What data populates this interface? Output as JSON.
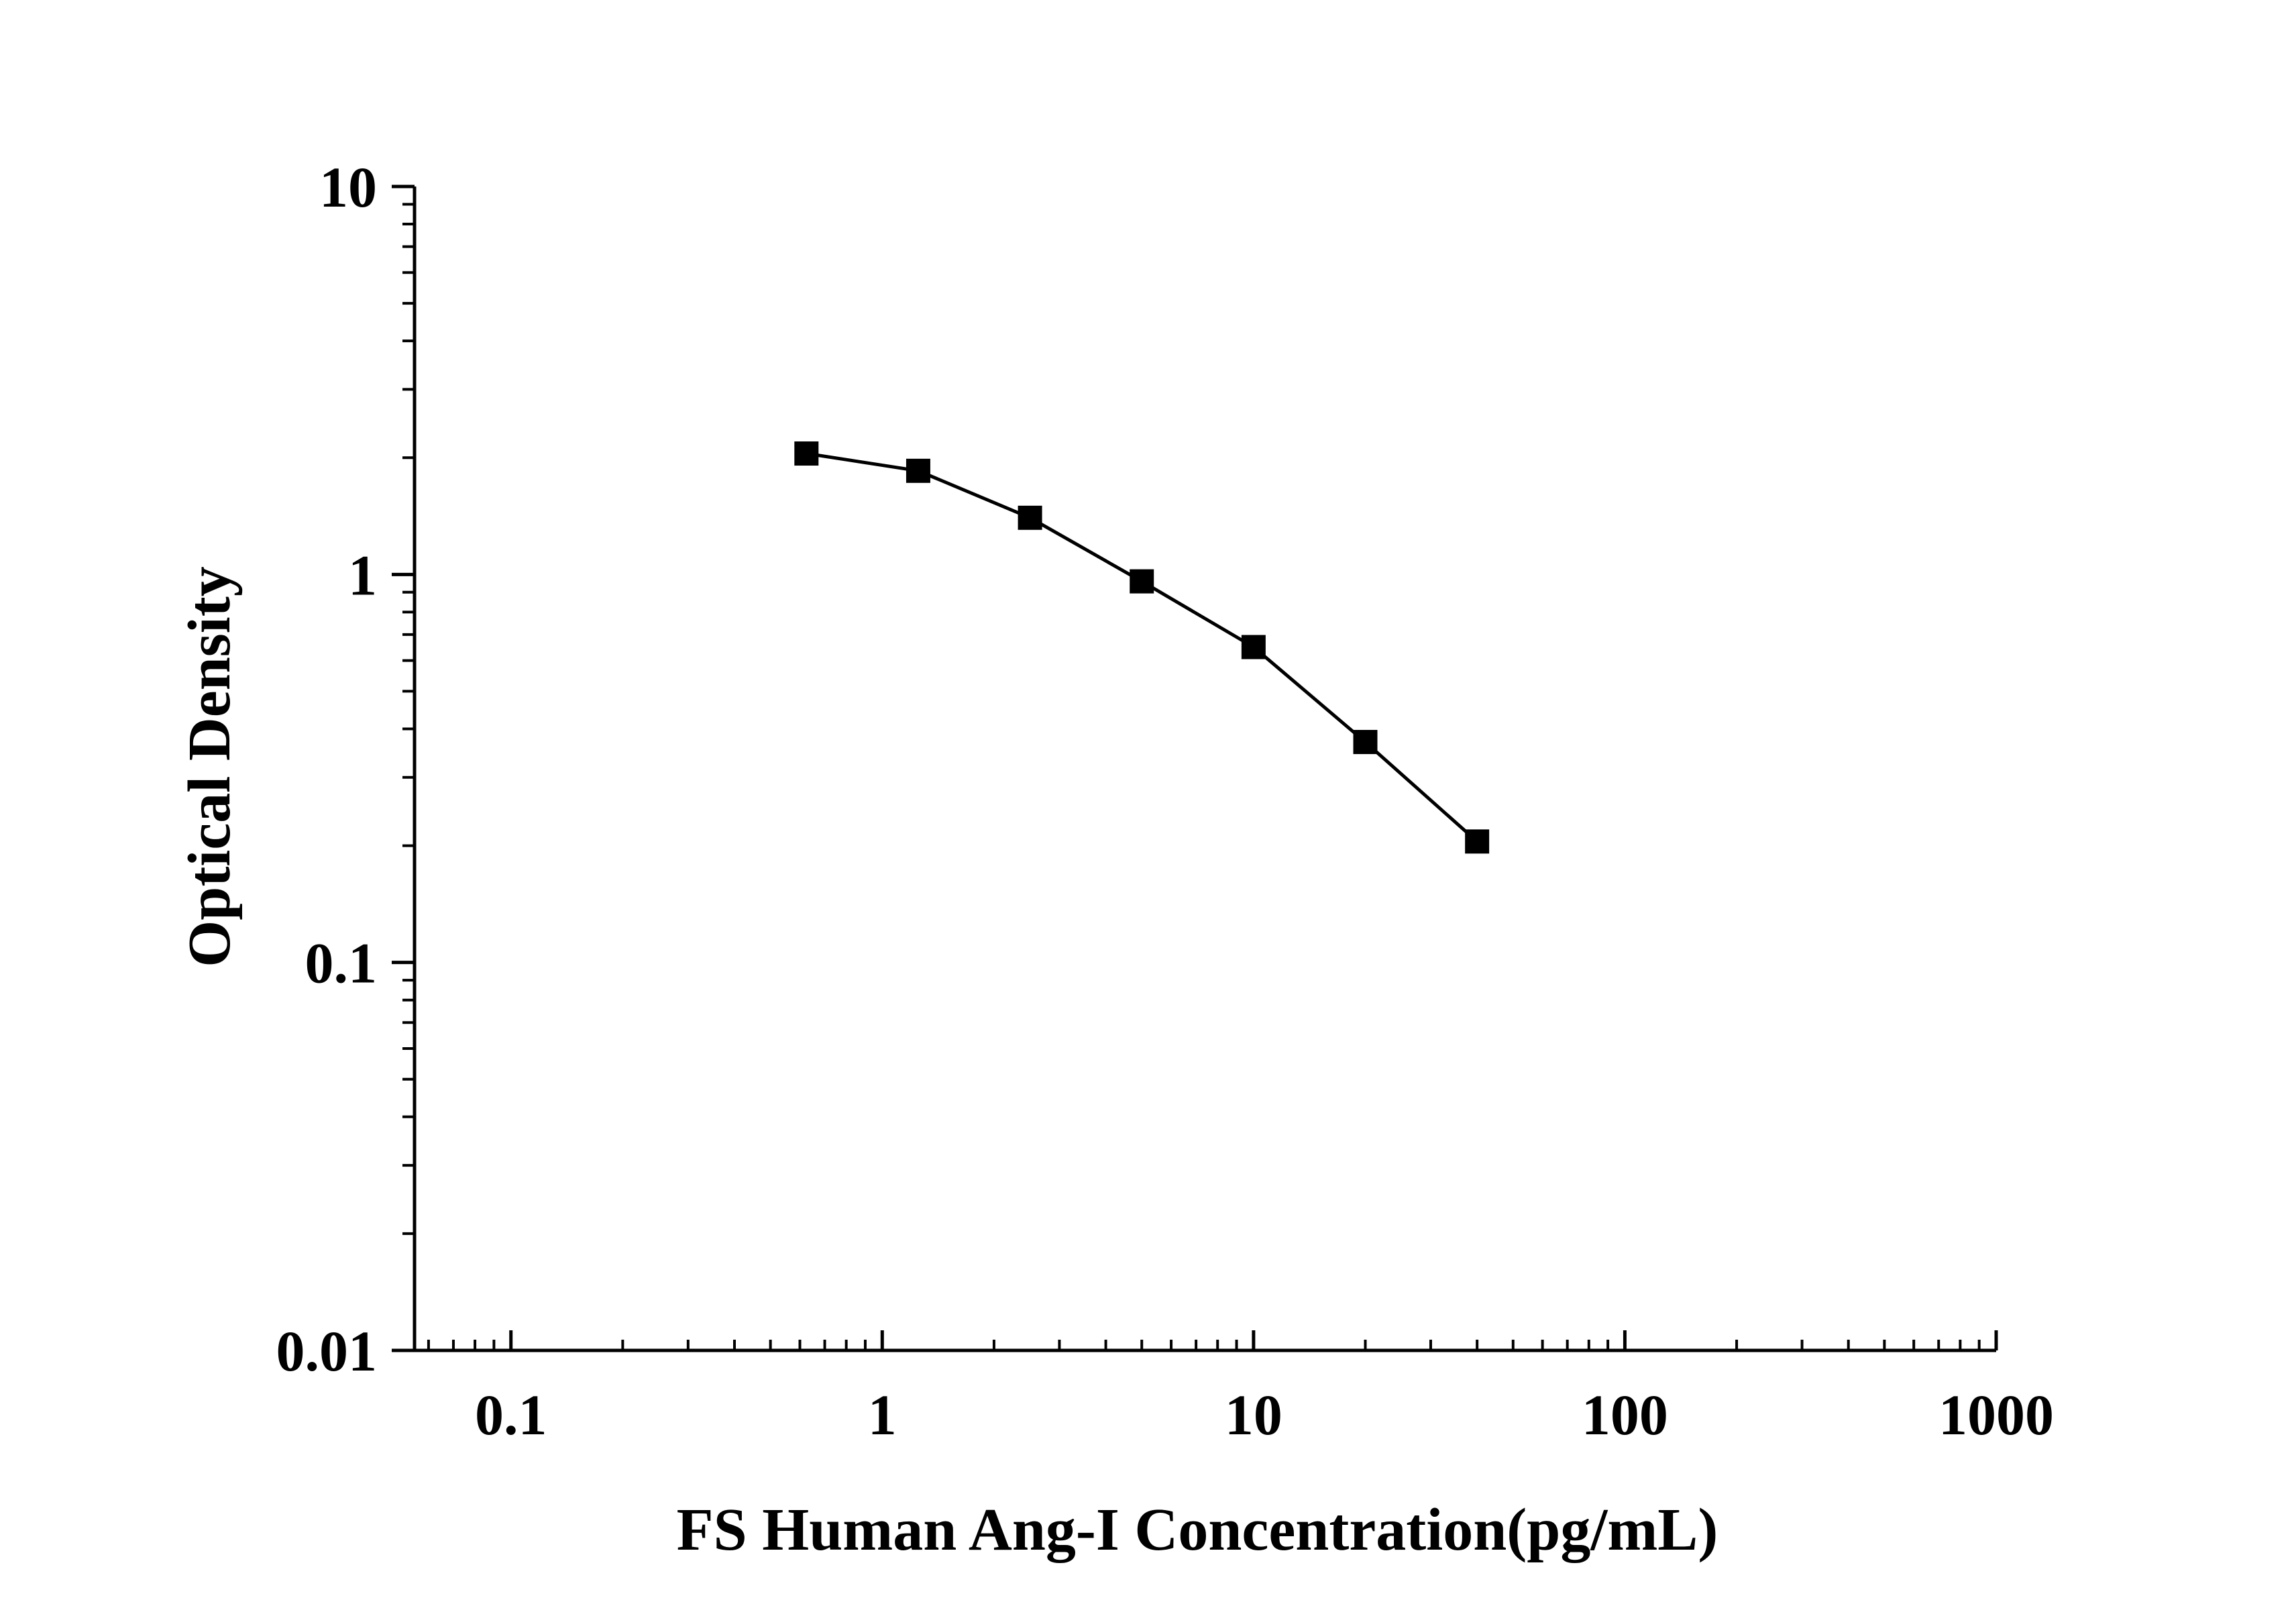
{
  "chart_data": {
    "type": "line",
    "title": "",
    "xlabel": "FS Human Ang-I Concentration(pg/mL)",
    "ylabel": "Optical Density",
    "x_scale": "log",
    "y_scale": "log",
    "xlim": [
      0.055,
      1000
    ],
    "ylim": [
      0.01,
      10
    ],
    "x_ticks": [
      0.1,
      1,
      10,
      100,
      1000
    ],
    "x_tick_labels": [
      "0.1",
      "1",
      "10",
      "100",
      "1000"
    ],
    "y_ticks": [
      0.01,
      0.1,
      1,
      10
    ],
    "y_tick_labels": [
      "0.01",
      "0.1",
      "1",
      "10"
    ],
    "grid": false,
    "legend": "none",
    "marker": "square",
    "color": "#000000",
    "series": [
      {
        "x": [
          0.625,
          1.25,
          2.5,
          5,
          10,
          20,
          40
        ],
        "y": [
          2.05,
          1.85,
          1.4,
          0.96,
          0.65,
          0.37,
          0.205
        ]
      }
    ]
  }
}
